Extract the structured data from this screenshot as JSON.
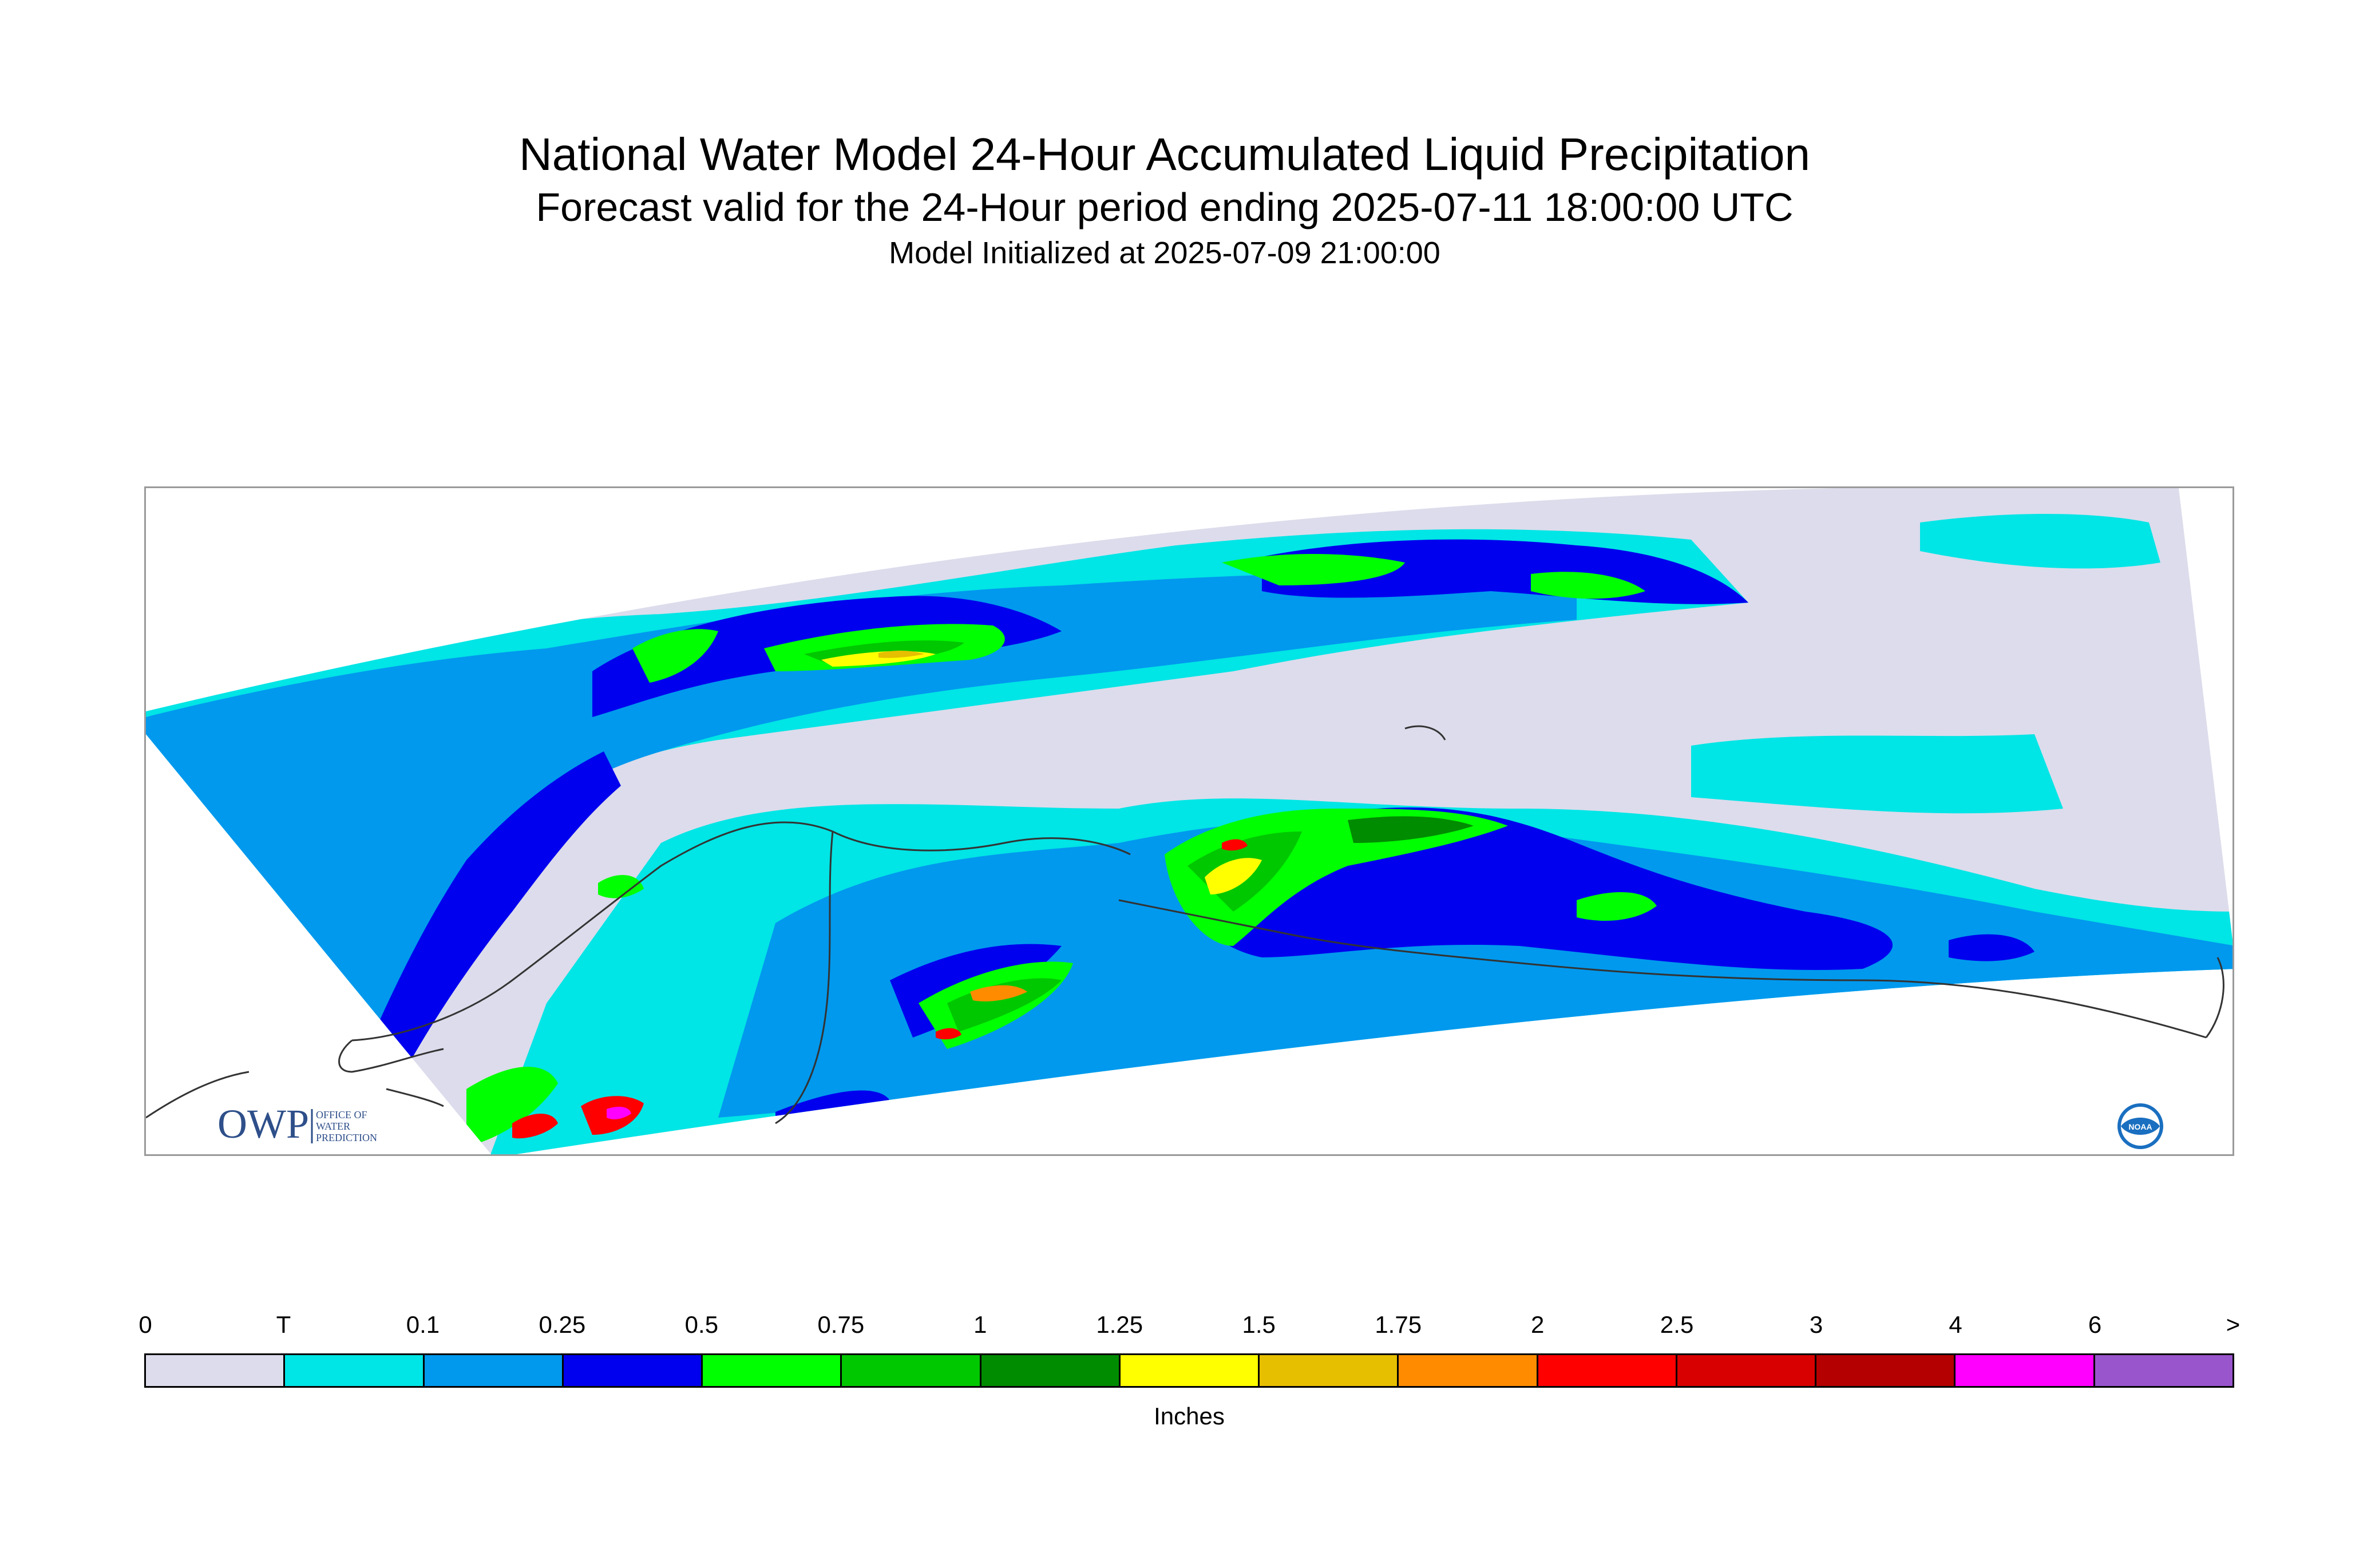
{
  "header": {
    "title": "National Water Model 24-Hour Accumulated Liquid Precipitation",
    "subtitle": "Forecast valid for the 24-Hour period ending 2025-07-11 18:00:00 UTC",
    "init_line": "Model Initialized at 2025-07-09 21:00:00"
  },
  "logos": {
    "owp_mark": "OWP",
    "owp_text_1": "OFFICE OF",
    "owp_text_2": "WATER",
    "owp_text_3": "PREDICTION",
    "noaa_mark": "NOAA"
  },
  "legend": {
    "units": "Inches",
    "boundaries": [
      "0",
      "T",
      "0.1",
      "0.25",
      "0.5",
      "0.75",
      "1",
      "1.25",
      "1.5",
      "1.75",
      "2",
      "2.5",
      "3",
      "4",
      "6",
      ">"
    ],
    "colors": [
      "#dcdcec",
      "#00e5e5",
      "#0099ee",
      "#0000ee",
      "#00ff00",
      "#00c800",
      "#008c00",
      "#ffff00",
      "#e6bf00",
      "#ff8c00",
      "#ff0000",
      "#d80000",
      "#b40000",
      "#ff00ff",
      "#9955cc"
    ]
  },
  "map": {
    "background_color": "#dcdcec",
    "precip_colors": {
      "trace": "#00e5e5",
      "light": "#0099ee",
      "moderate": "#0000ee",
      "green1": "#00ff00",
      "green2": "#00c800",
      "green3": "#008c00",
      "yellow": "#ffff00",
      "gold": "#e6bf00",
      "orange": "#ff8c00",
      "red": "#ff0000",
      "magenta": "#ff00ff"
    }
  }
}
